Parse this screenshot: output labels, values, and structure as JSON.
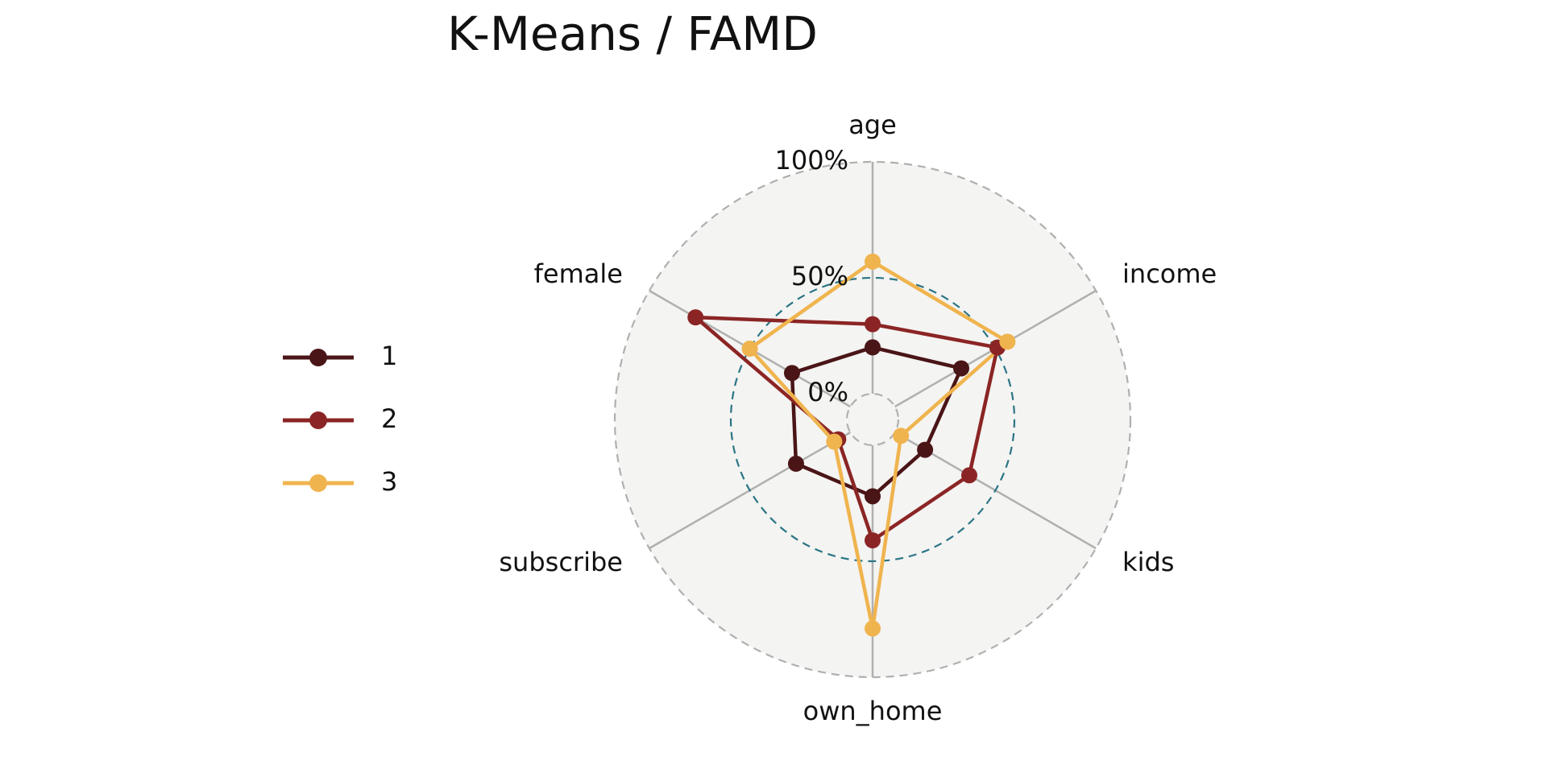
{
  "chart_data": {
    "type": "radar",
    "title": "K-Means / FAMD",
    "categories": [
      "age",
      "income",
      "kids",
      "own_home",
      "subscribe",
      "female"
    ],
    "series": [
      {
        "name": "1",
        "color": "#4a1517",
        "values": [
          20,
          33,
          15,
          22,
          27,
          29
        ]
      },
      {
        "name": "2",
        "color": "#8b2525",
        "values": [
          30,
          51,
          37,
          41,
          6,
          77
        ]
      },
      {
        "name": "3",
        "color": "#f0b44e",
        "values": [
          57,
          56,
          3,
          79,
          8,
          50
        ]
      }
    ],
    "ylim": [
      -11.1,
      100
    ],
    "yticks": [
      {
        "value": 0,
        "label": "0%"
      },
      {
        "value": 50,
        "label": "50%"
      },
      {
        "value": 100,
        "label": "100%"
      }
    ],
    "legend": "left"
  }
}
